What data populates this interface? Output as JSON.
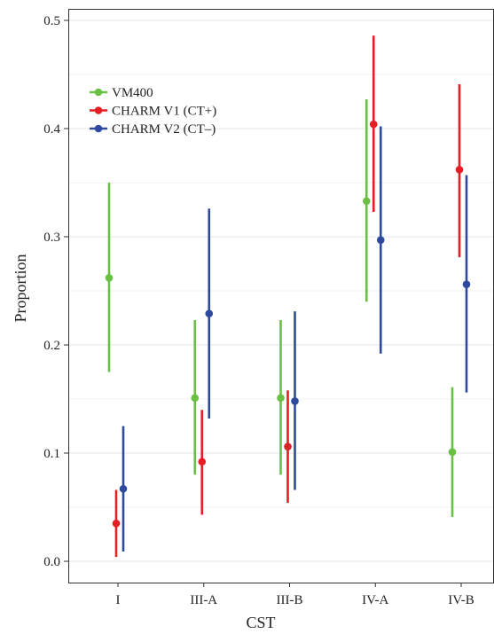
{
  "chart_data": {
    "type": "scatter",
    "subtype": "point-with-error-bars",
    "title": "",
    "xlabel": "CST",
    "ylabel": "Proportion",
    "categories": [
      "I",
      "III-A",
      "III-B",
      "IV-A",
      "IV-B"
    ],
    "ylim": [
      0.0,
      0.5
    ],
    "yticks": [
      "0.0",
      "0.1",
      "0.2",
      "0.3",
      "0.4",
      "0.5"
    ],
    "grid": "horizontal major and minor lines",
    "legend_position": "top-left",
    "series": [
      {
        "name": "VM400",
        "color": "#6abf45",
        "values": [
          0.262,
          0.151,
          0.151,
          0.333,
          0.101
        ],
        "lower": [
          0.175,
          0.08,
          0.08,
          0.24,
          0.041
        ],
        "upper": [
          0.35,
          0.223,
          0.223,
          0.427,
          0.161
        ]
      },
      {
        "name": "CHARM V1 (CT+)",
        "color": "#e31e24",
        "values": [
          0.035,
          0.092,
          0.106,
          0.404,
          0.362
        ],
        "lower": [
          0.004,
          0.043,
          0.054,
          0.323,
          0.281
        ],
        "upper": [
          0.066,
          0.14,
          0.158,
          0.486,
          0.441
        ]
      },
      {
        "name": "CHARM V2 (CT–)",
        "color": "#2e4a9e",
        "values": [
          0.067,
          0.229,
          0.148,
          0.297,
          0.256
        ],
        "lower": [
          0.009,
          0.132,
          0.066,
          0.192,
          0.156
        ],
        "upper": [
          0.125,
          0.326,
          0.231,
          0.402,
          0.357
        ]
      }
    ]
  }
}
